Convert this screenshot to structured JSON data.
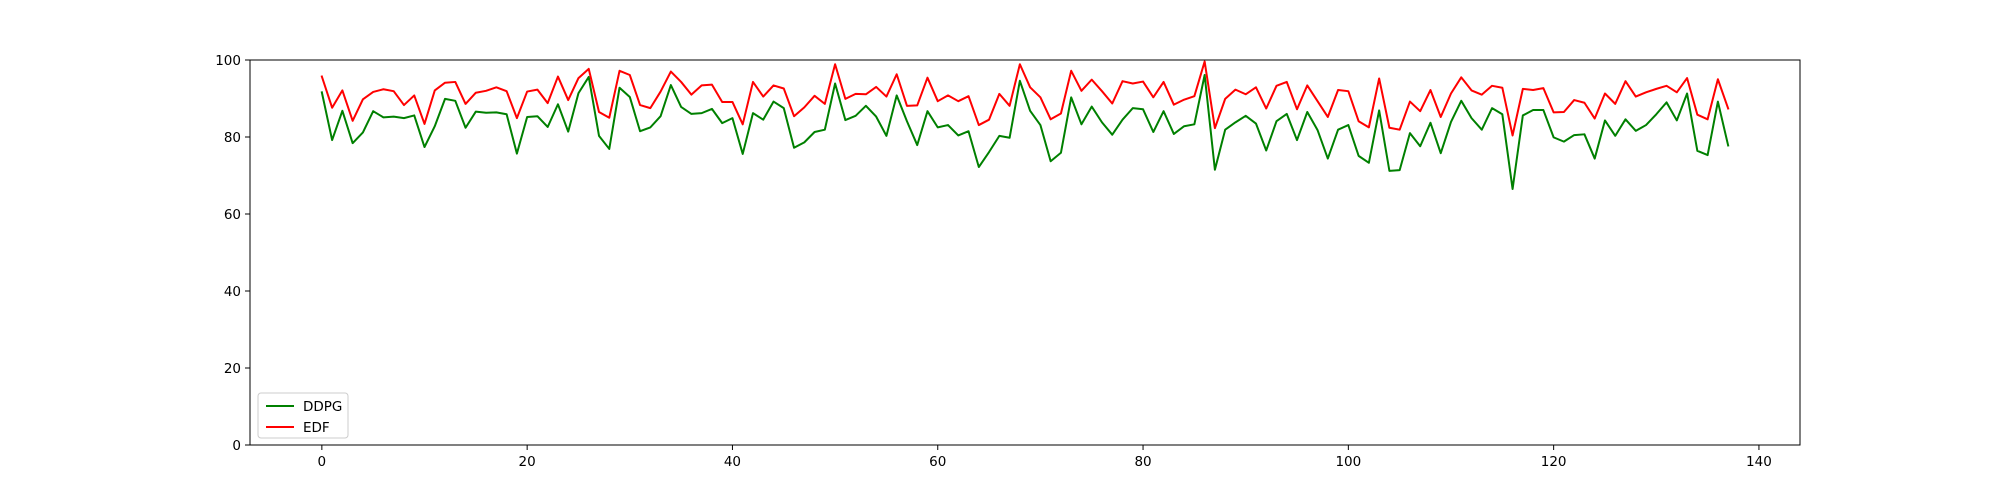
{
  "chart_data": {
    "type": "line",
    "title": "",
    "xlabel": "",
    "ylabel": "",
    "xlim": [
      -7,
      144
    ],
    "ylim": [
      0,
      100
    ],
    "xticks": [
      0,
      20,
      40,
      60,
      80,
      100,
      120,
      140
    ],
    "yticks": [
      0,
      20,
      40,
      60,
      80,
      100
    ],
    "grid": false,
    "legend_position": "lower-left",
    "x_start": 0,
    "series": [
      {
        "name": "DDPG",
        "color": "#008000",
        "values": [
          91.6,
          79.2,
          86.8,
          78.4,
          81.2,
          86.7,
          85.1,
          85.3,
          84.9,
          85.6,
          77.4,
          82.8,
          89.9,
          89.4,
          82.4,
          86.6,
          86.3,
          86.4,
          85.9,
          75.7,
          85.2,
          85.4,
          82.6,
          88.5,
          81.4,
          91.4,
          95.6,
          80.3,
          76.9,
          92.8,
          90.4,
          81.5,
          82.5,
          85.4,
          93.5,
          87.8,
          86.0,
          86.2,
          87.3,
          83.6,
          84.9,
          75.6,
          86.2,
          84.5,
          89.2,
          87.5,
          77.2,
          78.6,
          81.3,
          81.9,
          93.9,
          84.4,
          85.5,
          88.1,
          85.3,
          80.3,
          90.8,
          84.1,
          77.9,
          86.7,
          82.5,
          83.1,
          80.4,
          81.5,
          72.2,
          76.1,
          80.3,
          79.8,
          94.6,
          86.8,
          83.1,
          73.7,
          75.9,
          90.3,
          83.3,
          87.9,
          83.8,
          80.6,
          84.5,
          87.5,
          87.2,
          81.3,
          86.7,
          80.8,
          82.8,
          83.3,
          96.1,
          71.5,
          81.9,
          83.8,
          85.5,
          83.5,
          76.5,
          84.1,
          86.0,
          79.2,
          86.5,
          81.8,
          74.4,
          81.9,
          83.1,
          75.1,
          73.3,
          86.9,
          71.2,
          71.4,
          81.0,
          77.6,
          83.7,
          75.8,
          83.9,
          89.4,
          84.9,
          81.9,
          87.5,
          85.9,
          66.5,
          85.6,
          87.0,
          87.0,
          79.9,
          78.8,
          80.5,
          80.7,
          74.4,
          84.3,
          80.3,
          84.6,
          81.6,
          83.1,
          85.9,
          89.0,
          84.3,
          91.3,
          76.4,
          75.3,
          89.2,
          77.8
        ]
      },
      {
        "name": "EDF",
        "color": "#ff0000",
        "values": [
          95.7,
          87.6,
          92.1,
          84.2,
          89.8,
          91.7,
          92.4,
          91.9,
          88.3,
          90.8,
          83.4,
          92.1,
          94.1,
          94.3,
          88.6,
          91.5,
          92.0,
          92.9,
          91.9,
          84.9,
          91.8,
          92.3,
          88.8,
          95.7,
          89.6,
          95.3,
          97.7,
          86.5,
          85.0,
          97.2,
          96.1,
          88.3,
          87.5,
          91.8,
          97.0,
          94.3,
          91.0,
          93.4,
          93.6,
          89.1,
          89.1,
          83.3,
          94.3,
          90.5,
          93.4,
          92.6,
          85.4,
          87.7,
          90.7,
          88.6,
          98.9,
          89.9,
          91.2,
          91.1,
          93.0,
          90.5,
          96.3,
          88.1,
          88.2,
          95.4,
          89.3,
          90.8,
          89.3,
          90.6,
          83.1,
          84.5,
          91.2,
          88.1,
          98.9,
          92.9,
          90.3,
          84.6,
          86.1,
          97.2,
          92.0,
          94.9,
          91.9,
          88.7,
          94.5,
          93.9,
          94.4,
          90.3,
          94.3,
          88.4,
          89.7,
          90.6,
          99.6,
          82.3,
          89.9,
          92.3,
          91.1,
          92.9,
          87.4,
          93.3,
          94.3,
          87.2,
          93.4,
          89.3,
          85.2,
          92.2,
          91.9,
          84.1,
          82.5,
          95.2,
          82.4,
          81.9,
          89.2,
          86.7,
          92.2,
          85.2,
          91.3,
          95.5,
          92.1,
          91.0,
          93.3,
          92.8,
          80.4,
          92.5,
          92.2,
          92.7,
          86.4,
          86.5,
          89.6,
          88.9,
          84.8,
          91.3,
          88.6,
          94.5,
          90.5,
          91.6,
          92.5,
          93.3,
          91.6,
          95.3,
          85.8,
          84.6,
          95.0,
          87.4
        ]
      }
    ]
  }
}
